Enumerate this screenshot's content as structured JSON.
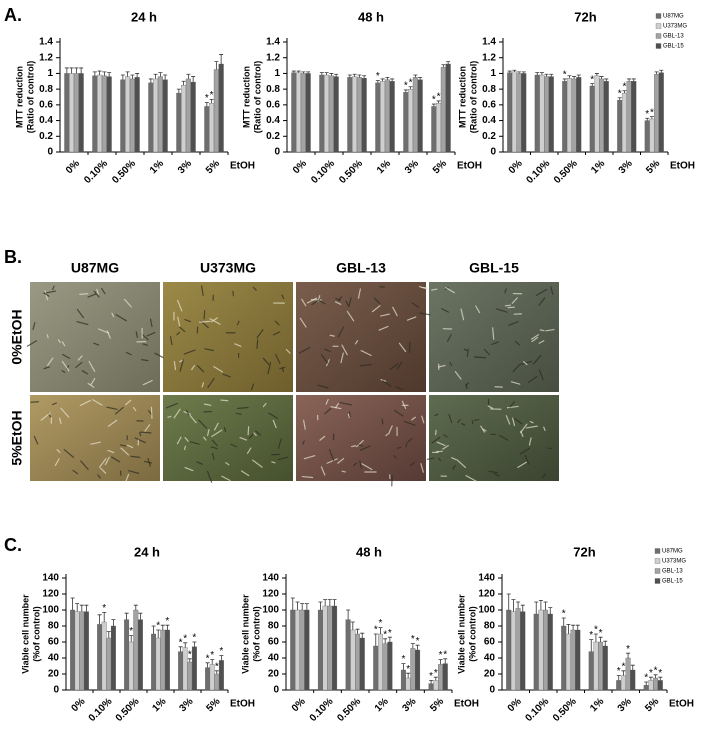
{
  "panel_labels": [
    "A.",
    "B.",
    "C."
  ],
  "micrographs": {
    "columns": [
      "U87MG",
      "U373MG",
      "GBL-13",
      "GBL-15"
    ],
    "rows": [
      "0%EtOH",
      "5%EtOH"
    ]
  },
  "chart_data": [
    {
      "type": "bar",
      "title": "24 h",
      "ylabel": [
        "MTT reduction",
        "(Ratio of control)"
      ],
      "xlabel": "EtOH",
      "categories": [
        "0%",
        "0.10%",
        "0.50%",
        "1%",
        "3%",
        "5%"
      ],
      "ylim": [
        0,
        1.4
      ],
      "yticks": [
        0,
        0.2,
        0.4,
        0.6,
        0.8,
        1,
        1.2,
        1.4
      ],
      "series": [
        {
          "name": "U87MG",
          "color": "#6e6e6e",
          "values": [
            1,
            0.97,
            0.92,
            0.88,
            0.75,
            0.58
          ],
          "errors": [
            0.07,
            0.05,
            0.06,
            0.05,
            0.05,
            0.05
          ],
          "significance": [
            null,
            null,
            null,
            null,
            null,
            "*"
          ]
        },
        {
          "name": "U373MG",
          "color": "#cfcfcf",
          "values": [
            1,
            0.98,
            0.96,
            0.93,
            0.85,
            0.62
          ],
          "errors": [
            0.07,
            0.05,
            0.06,
            0.06,
            0.05,
            0.05
          ],
          "significance": [
            null,
            null,
            null,
            null,
            null,
            "*"
          ]
        },
        {
          "name": "GBL-13",
          "color": "#a3a3a3",
          "values": [
            1,
            0.97,
            0.93,
            0.96,
            0.93,
            1.05
          ],
          "errors": [
            0.07,
            0.05,
            0.05,
            0.05,
            0.06,
            0.1
          ],
          "significance": [
            null,
            null,
            null,
            null,
            null,
            null
          ]
        },
        {
          "name": "GBL-15",
          "color": "#505050",
          "values": [
            1,
            0.96,
            0.95,
            0.92,
            0.89,
            1.12
          ],
          "errors": [
            0.07,
            0.05,
            0.05,
            0.06,
            0.07,
            0.12
          ],
          "significance": [
            null,
            null,
            null,
            null,
            null,
            null
          ]
        }
      ]
    },
    {
      "type": "bar",
      "title": "48 h",
      "ylabel": [
        "MTT reduction",
        "(Ratio of control)"
      ],
      "xlabel": "EtOH",
      "categories": [
        "0%",
        "0.10%",
        "0.50%",
        "1%",
        "3%",
        "5%"
      ],
      "ylim": [
        0,
        1.4
      ],
      "yticks": [
        0,
        0.2,
        0.4,
        0.6,
        0.8,
        1,
        1.2,
        1.4
      ],
      "series": [
        {
          "name": "U87MG",
          "color": "#6e6e6e",
          "values": [
            1.01,
            0.98,
            0.95,
            0.88,
            0.76,
            0.58
          ],
          "errors": [
            0.02,
            0.03,
            0.03,
            0.03,
            0.03,
            0.03
          ],
          "significance": [
            null,
            null,
            null,
            "*",
            "*",
            "*"
          ]
        },
        {
          "name": "U373MG",
          "color": "#cfcfcf",
          "values": [
            1.01,
            0.98,
            0.96,
            0.9,
            0.8,
            0.62
          ],
          "errors": [
            0.02,
            0.03,
            0.03,
            0.03,
            0.03,
            0.03
          ],
          "significance": [
            null,
            null,
            null,
            null,
            "*",
            "*"
          ]
        },
        {
          "name": "GBL-13",
          "color": "#a3a3a3",
          "values": [
            1,
            0.97,
            0.95,
            0.92,
            0.95,
            1.08
          ],
          "errors": [
            0.02,
            0.03,
            0.03,
            0.03,
            0.03,
            0.03
          ],
          "significance": [
            null,
            null,
            null,
            null,
            null,
            null
          ]
        },
        {
          "name": "GBL-15",
          "color": "#505050",
          "values": [
            1,
            0.96,
            0.94,
            0.9,
            0.92,
            1.12
          ],
          "errors": [
            0.02,
            0.03,
            0.03,
            0.03,
            0.03,
            0.03
          ],
          "significance": [
            null,
            null,
            null,
            null,
            null,
            null
          ]
        }
      ]
    },
    {
      "type": "bar",
      "title": "72h",
      "ylabel": [
        "MTT reduction",
        "(Ratio of control)"
      ],
      "xlabel": "EtOH",
      "legend": "upper right",
      "categories": [
        "0%",
        "0.10%",
        "0.50%",
        "1%",
        "3%",
        "5%"
      ],
      "ylim": [
        0,
        1.4
      ],
      "yticks": [
        0,
        0.2,
        0.4,
        0.6,
        0.8,
        1,
        1.2,
        1.4
      ],
      "series": [
        {
          "name": "U87MG",
          "color": "#6e6e6e",
          "values": [
            1.01,
            0.98,
            0.9,
            0.84,
            0.66,
            0.4
          ],
          "errors": [
            0.02,
            0.03,
            0.03,
            0.03,
            0.03,
            0.03
          ],
          "significance": [
            null,
            null,
            "*",
            "*",
            "*",
            "*"
          ]
        },
        {
          "name": "U373MG",
          "color": "#cfcfcf",
          "values": [
            1.02,
            0.98,
            0.94,
            0.97,
            0.75,
            0.42
          ],
          "errors": [
            0.02,
            0.03,
            0.03,
            0.03,
            0.03,
            0.03
          ],
          "significance": [
            null,
            null,
            null,
            null,
            "*",
            "*"
          ]
        },
        {
          "name": "GBL-13",
          "color": "#a3a3a3",
          "values": [
            1,
            0.96,
            0.93,
            0.93,
            0.9,
            0.99
          ],
          "errors": [
            0.02,
            0.03,
            0.03,
            0.03,
            0.03,
            0.03
          ],
          "significance": [
            null,
            null,
            null,
            null,
            null,
            null
          ]
        },
        {
          "name": "GBL-15",
          "color": "#505050",
          "values": [
            1,
            0.96,
            0.95,
            0.9,
            0.9,
            1.01
          ],
          "errors": [
            0.02,
            0.03,
            0.03,
            0.03,
            0.03,
            0.03
          ],
          "significance": [
            null,
            null,
            null,
            null,
            null,
            null
          ]
        }
      ]
    },
    {
      "type": "bar",
      "title": "24 h",
      "ylabel": [
        "Viable cell number",
        "(%of control)"
      ],
      "xlabel": "EtOH",
      "categories": [
        "0%",
        "0.10%",
        "0.50%",
        "1%",
        "3%",
        "5%"
      ],
      "ylim": [
        0,
        140
      ],
      "yticks": [
        0,
        20,
        40,
        60,
        80,
        100,
        120,
        140
      ],
      "series": [
        {
          "name": "U87MG",
          "color": "#6e6e6e",
          "values": [
            100,
            82,
            88,
            70,
            48,
            28
          ],
          "errors": [
            15,
            12,
            8,
            10,
            6,
            6
          ],
          "significance": [
            null,
            null,
            null,
            null,
            "*",
            "*"
          ]
        },
        {
          "name": "U373MG",
          "color": "#cfcfcf",
          "values": [
            98,
            85,
            60,
            65,
            53,
            32
          ],
          "errors": [
            10,
            12,
            8,
            10,
            6,
            6
          ],
          "significance": [
            null,
            "*",
            "*",
            "*",
            "*",
            "*"
          ]
        },
        {
          "name": "GBL-13",
          "color": "#a3a3a3",
          "values": [
            98,
            65,
            100,
            75,
            35,
            20
          ],
          "errors": [
            8,
            8,
            6,
            6,
            4,
            4
          ],
          "significance": [
            null,
            null,
            null,
            null,
            "*",
            "*"
          ]
        },
        {
          "name": "GBL-15",
          "color": "#505050",
          "values": [
            98,
            80,
            88,
            75,
            54,
            37
          ],
          "errors": [
            8,
            8,
            8,
            6,
            6,
            6
          ],
          "significance": [
            null,
            null,
            null,
            "*",
            "*",
            "*"
          ]
        }
      ]
    },
    {
      "type": "bar",
      "title": "48 h",
      "ylabel": [
        "Viable cell number",
        "(%of control)"
      ],
      "xlabel": "EtOH",
      "categories": [
        "0%",
        "0.10%",
        "0.50%",
        "1%",
        "3%",
        "5%"
      ],
      "ylim": [
        0,
        140
      ],
      "yticks": [
        0,
        20,
        40,
        60,
        80,
        100,
        120,
        140
      ],
      "series": [
        {
          "name": "U87MG",
          "color": "#6e6e6e",
          "values": [
            100,
            100,
            88,
            55,
            25,
            8
          ],
          "errors": [
            15,
            10,
            12,
            15,
            8,
            4
          ],
          "significance": [
            null,
            null,
            null,
            "*",
            "*",
            "*"
          ]
        },
        {
          "name": "U373MG",
          "color": "#cfcfcf",
          "values": [
            100,
            105,
            75,
            70,
            15,
            12
          ],
          "errors": [
            10,
            8,
            10,
            8,
            6,
            4
          ],
          "significance": [
            null,
            null,
            null,
            "*",
            "*",
            "*"
          ]
        },
        {
          "name": "GBL-13",
          "color": "#a3a3a3",
          "values": [
            100,
            105,
            70,
            58,
            52,
            32
          ],
          "errors": [
            8,
            8,
            6,
            6,
            6,
            6
          ],
          "significance": [
            null,
            null,
            null,
            "*",
            "*",
            "*"
          ]
        },
        {
          "name": "GBL-15",
          "color": "#505050",
          "values": [
            100,
            105,
            65,
            60,
            50,
            33
          ],
          "errors": [
            8,
            8,
            6,
            6,
            6,
            6
          ],
          "significance": [
            null,
            null,
            null,
            "*",
            "*",
            "*"
          ]
        }
      ]
    },
    {
      "type": "bar",
      "title": "72h",
      "ylabel": [
        "Viable cell number",
        "(%of control)"
      ],
      "xlabel": "EtOH",
      "legend": "upper right",
      "categories": [
        "0%",
        "0.10%",
        "0.50%",
        "1%",
        "3%",
        "5%"
      ],
      "ylim": [
        0,
        140
      ],
      "yticks": [
        0,
        20,
        40,
        60,
        80,
        100,
        120,
        140
      ],
      "series": [
        {
          "name": "U87MG",
          "color": "#6e6e6e",
          "values": [
            100,
            95,
            80,
            48,
            12,
            6
          ],
          "errors": [
            20,
            15,
            10,
            15,
            6,
            4
          ],
          "significance": [
            null,
            null,
            "*",
            "*",
            "*",
            "*"
          ]
        },
        {
          "name": "U373MG",
          "color": "#cfcfcf",
          "values": [
            98,
            100,
            70,
            60,
            18,
            12
          ],
          "errors": [
            15,
            12,
            12,
            10,
            6,
            4
          ],
          "significance": [
            null,
            null,
            null,
            "*",
            "*",
            "*"
          ]
        },
        {
          "name": "GBL-13",
          "color": "#a3a3a3",
          "values": [
            102,
            100,
            75,
            60,
            40,
            15
          ],
          "errors": [
            8,
            10,
            6,
            6,
            6,
            4
          ],
          "significance": [
            null,
            null,
            null,
            "*",
            "*",
            "*"
          ]
        },
        {
          "name": "GBL-15",
          "color": "#505050",
          "values": [
            98,
            95,
            75,
            55,
            25,
            12
          ],
          "errors": [
            8,
            8,
            6,
            6,
            6,
            4
          ],
          "significance": [
            null,
            null,
            null,
            null,
            null,
            "*"
          ]
        }
      ]
    }
  ]
}
